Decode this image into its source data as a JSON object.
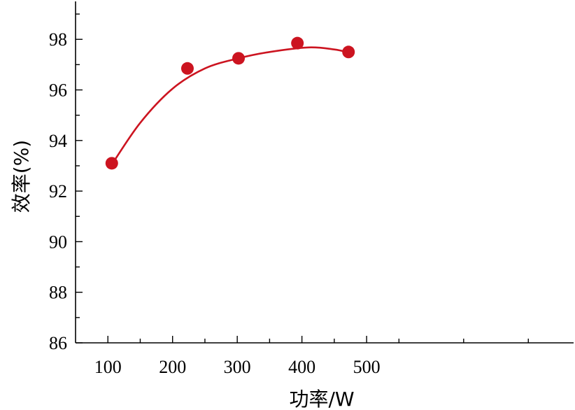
{
  "chart_data": {
    "type": "scatter",
    "title": "",
    "xlabel": "功率/W",
    "ylabel": "效率(%)",
    "xlim": [
      50,
      820
    ],
    "ylim": [
      86,
      99.5
    ],
    "xticks": [
      100,
      200,
      300,
      400,
      500
    ],
    "yticks": [
      86,
      88,
      90,
      92,
      94,
      96,
      98
    ],
    "grid": false,
    "series": [
      {
        "points": [
          {
            "x": 106,
            "y": 93.1
          },
          {
            "x": 223,
            "y": 96.85
          },
          {
            "x": 302,
            "y": 97.25
          },
          {
            "x": 393,
            "y": 97.85
          },
          {
            "x": 472,
            "y": 97.5
          }
        ],
        "fit_curve": [
          {
            "x": 106,
            "y": 93.05
          },
          {
            "x": 150,
            "y": 94.7
          },
          {
            "x": 200,
            "y": 96.05
          },
          {
            "x": 250,
            "y": 96.85
          },
          {
            "x": 302,
            "y": 97.25
          },
          {
            "x": 350,
            "y": 97.5
          },
          {
            "x": 410,
            "y": 97.68
          },
          {
            "x": 450,
            "y": 97.6
          },
          {
            "x": 472,
            "y": 97.48
          }
        ]
      }
    ],
    "colors": {
      "series": "#cc1420",
      "axis": "#000000"
    }
  }
}
